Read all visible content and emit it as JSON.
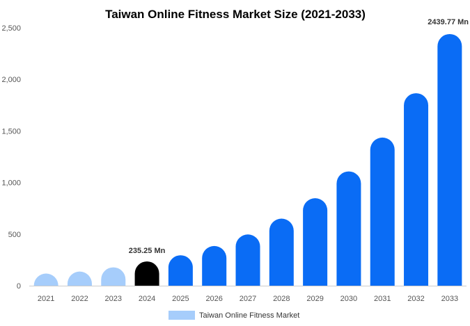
{
  "chart_data": {
    "type": "bar",
    "title": "Taiwan Online Fitness Market Size (2021-2033)",
    "xlabel": "",
    "ylabel": "",
    "categories": [
      "2021",
      "2022",
      "2023",
      "2024",
      "2025",
      "2026",
      "2027",
      "2028",
      "2029",
      "2030",
      "2031",
      "2032",
      "2033"
    ],
    "series": [
      {
        "name": "Taiwan Online Fitness Market",
        "values": [
          105,
          137,
          178,
          235.25,
          295,
          385,
          497,
          650,
          848,
          1108,
          1436,
          1866,
          2439.77
        ]
      }
    ],
    "ylim": [
      0,
      2500
    ],
    "yticks": [
      0,
      500,
      1000,
      1500,
      2000,
      2500
    ],
    "ytick_labels": [
      "0",
      "500",
      "1,000",
      "1,500",
      "2,000",
      "2,500"
    ],
    "data_labels": [
      {
        "category": "2024",
        "text": "235.25 Mn"
      },
      {
        "category": "2033",
        "text": "2439.77 Mn"
      }
    ],
    "grid": false,
    "legend_position": "bottom-center",
    "colors": {
      "historic": "#a6cdfb",
      "base_year": "#000000",
      "forecast": "#0a6cf5",
      "legend_swatch": "#a6cdfb",
      "axis": "#cccccc"
    }
  }
}
